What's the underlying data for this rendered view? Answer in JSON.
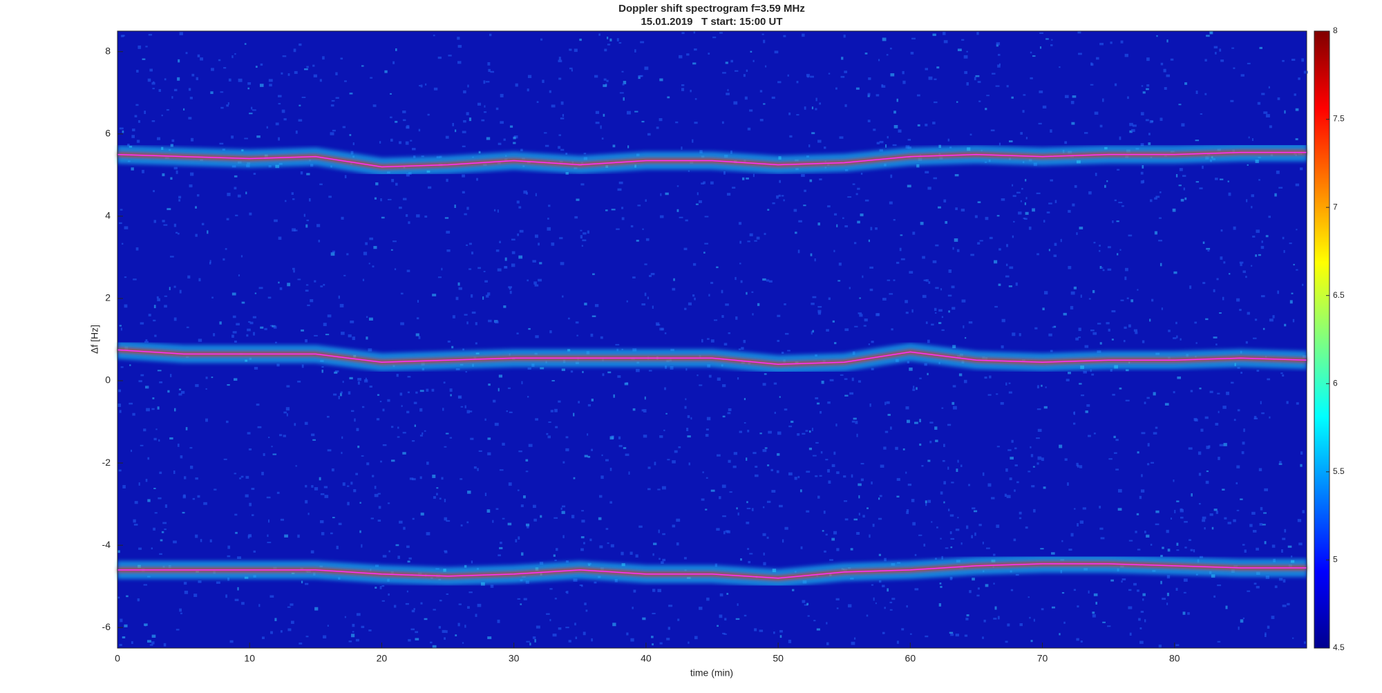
{
  "chart_data": {
    "type": "spectrogram",
    "title": "Doppler shift spectrogram f=3.59 MHz",
    "subtitle": "15.01.2019   T start: 15:00 UT",
    "x_label": "time (min)",
    "y_label": "Δf [Hz]",
    "xlim": [
      0,
      90
    ],
    "xticks": [
      0,
      10,
      20,
      30,
      40,
      50,
      60,
      70,
      80
    ],
    "ylim": [
      -6.5,
      8.5
    ],
    "yticks": [
      -6,
      -4,
      -2,
      0,
      2,
      4,
      6,
      8
    ],
    "colormap": "jet",
    "clim": [
      4.5,
      8
    ],
    "cticks": [
      4.5,
      5,
      5.5,
      6,
      6.5,
      7,
      7.5,
      8
    ],
    "x": [
      0,
      5,
      10,
      15,
      20,
      25,
      30,
      35,
      40,
      45,
      50,
      55,
      60,
      65,
      70,
      75,
      80,
      85,
      90
    ],
    "series": [
      {
        "color": "#ff30ff",
        "values": [
          5.5,
          5.45,
          5.4,
          5.45,
          5.2,
          5.25,
          5.35,
          5.25,
          5.35,
          5.35,
          5.25,
          5.3,
          5.45,
          5.5,
          5.45,
          5.5,
          5.5,
          5.55,
          5.55
        ]
      },
      {
        "color": "#ff30ff",
        "values": [
          0.75,
          0.65,
          0.65,
          0.65,
          0.45,
          0.5,
          0.55,
          0.55,
          0.55,
          0.55,
          0.4,
          0.45,
          0.7,
          0.5,
          0.45,
          0.5,
          0.5,
          0.55,
          0.5
        ]
      },
      {
        "color": "#ff30ff",
        "values": [
          -4.6,
          -4.6,
          -4.6,
          -4.6,
          -4.7,
          -4.75,
          -4.7,
          -4.6,
          -4.7,
          -4.7,
          -4.8,
          -4.65,
          -4.6,
          -4.5,
          -4.45,
          -4.45,
          -4.5,
          -4.55,
          -4.55
        ]
      }
    ]
  }
}
